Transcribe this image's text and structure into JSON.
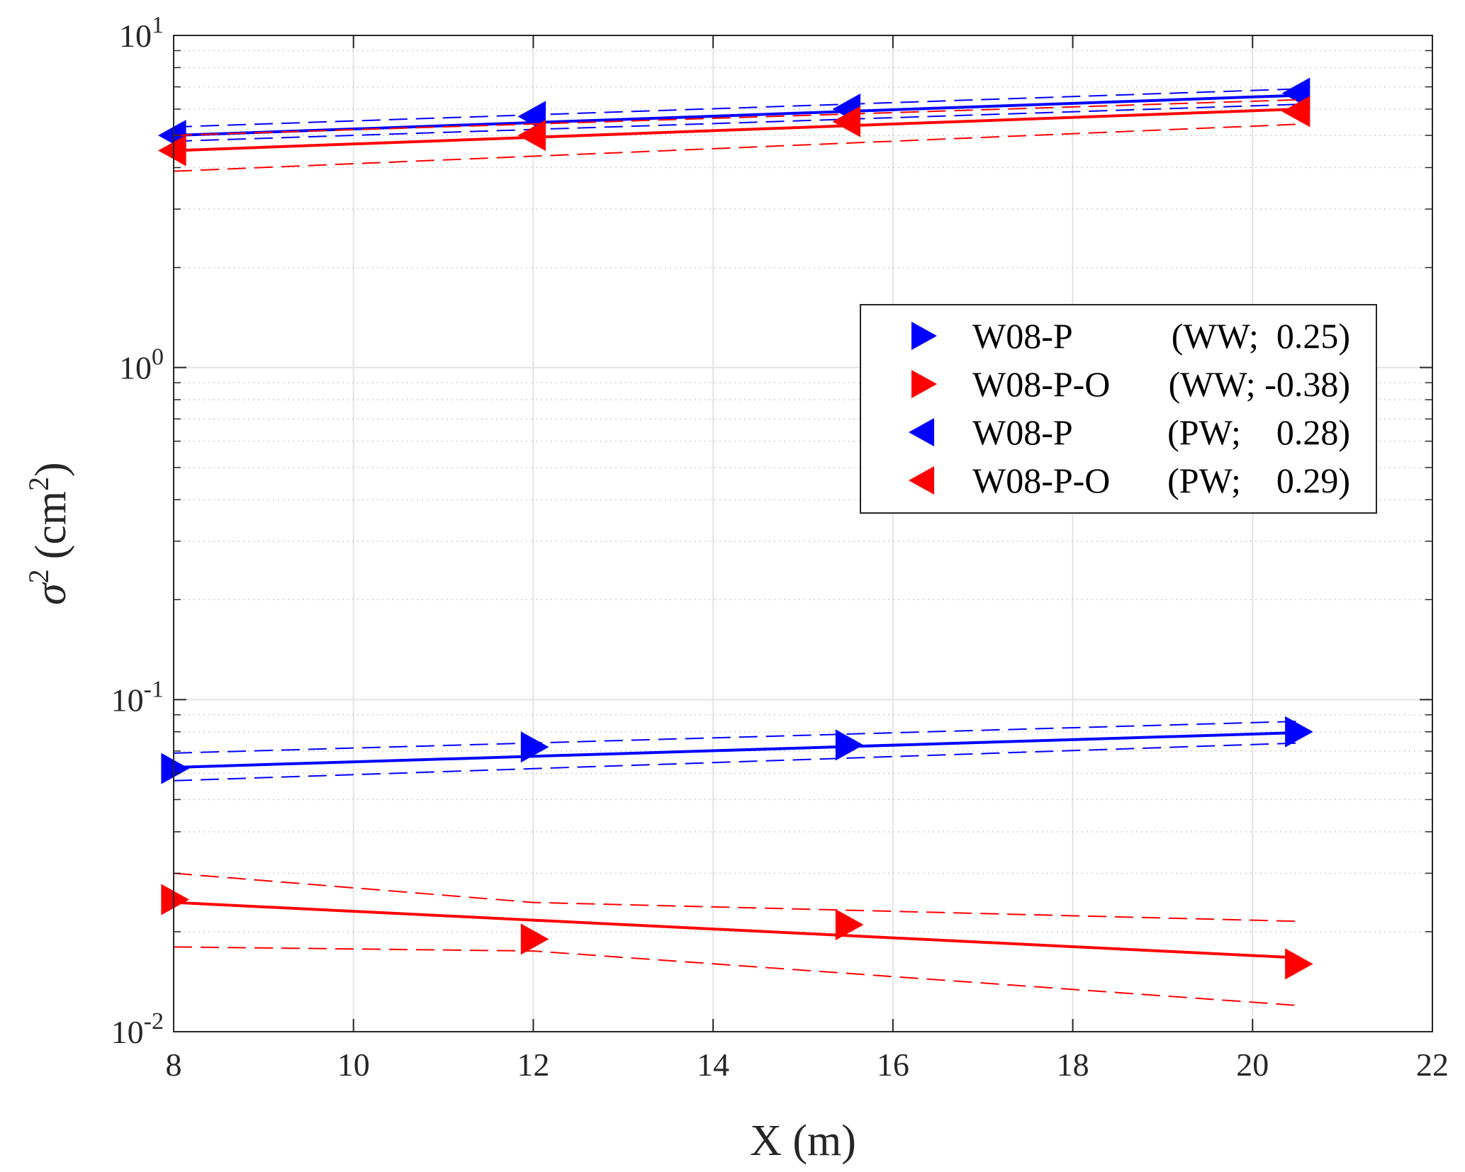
{
  "chart_data": {
    "type": "scatter",
    "xlabel": "X (m)",
    "ylabel_symbol": "σ",
    "ylabel_exponent": "2",
    "ylabel_unit_open": "(cm",
    "ylabel_unit_exp": "2",
    "ylabel_unit_close": ")",
    "xlim": [
      8,
      22
    ],
    "ylim": [
      0.01,
      10
    ],
    "yscale": "log",
    "grid": true,
    "legend_position": "center-right",
    "x_ticks": [
      "8",
      "10",
      "12",
      "14",
      "16",
      "18",
      "20",
      "22"
    ],
    "x_tick_values": [
      8,
      10,
      12,
      14,
      16,
      18,
      20,
      22
    ],
    "y_ticks": [
      {
        "value": 10,
        "base": "10",
        "exp": "1"
      },
      {
        "value": 1,
        "base": "10",
        "exp": "0"
      },
      {
        "value": 0.1,
        "base": "10",
        "exp": "-1"
      },
      {
        "value": 0.01,
        "base": "10",
        "exp": "-2"
      }
    ],
    "series": [
      {
        "name": "W08-P     (WW;  0.25)",
        "legend_label": "W08-P",
        "legend_info": "(WW;  0.25)",
        "marker": "triangle-right",
        "color": "#0000ff",
        "x": [
          8,
          12,
          15.5,
          20.5
        ],
        "y": [
          0.062,
          0.072,
          0.073,
          0.08
        ],
        "fit": {
          "x": [
            8,
            20.5
          ],
          "y": [
            0.0625,
            0.0795
          ]
        },
        "ci_upper": {
          "x": [
            8,
            20.5
          ],
          "y": [
            0.069,
            0.086
          ]
        },
        "ci_lower": {
          "x": [
            8,
            20.5
          ],
          "y": [
            0.057,
            0.074
          ]
        }
      },
      {
        "name": "W08-P-O (WW; -0.38)",
        "legend_label": "W08-P-O",
        "legend_info": "(WW; -0.38)",
        "marker": "triangle-right",
        "color": "#ff0000",
        "x": [
          8,
          12,
          15.5,
          20.5
        ],
        "y": [
          0.025,
          0.019,
          0.021,
          0.016
        ],
        "fit": {
          "x": [
            8,
            20.5
          ],
          "y": [
            0.0245,
            0.0167
          ]
        },
        "ci_upper": {
          "x": [
            8,
            12,
            20.5
          ],
          "y": [
            0.03,
            0.0245,
            0.0215
          ]
        },
        "ci_lower": {
          "x": [
            8,
            12,
            20.5
          ],
          "y": [
            0.018,
            0.0175,
            0.012
          ]
        }
      },
      {
        "name": "W08-P     (PW;    0.28)",
        "legend_label": "W08-P",
        "legend_info": "(PW;    0.28)",
        "marker": "triangle-left",
        "color": "#0000ff",
        "x": [
          8,
          12,
          15.5,
          20.5
        ],
        "y": [
          5.0,
          5.7,
          6.0,
          6.7
        ],
        "fit": {
          "x": [
            8,
            20.5
          ],
          "y": [
            5.0,
            6.6
          ]
        },
        "ci_upper": {
          "x": [
            8,
            20.5
          ],
          "y": [
            5.3,
            6.9
          ]
        },
        "ci_lower": {
          "x": [
            8,
            20.5
          ],
          "y": [
            4.8,
            6.2
          ]
        }
      },
      {
        "name": "W08-P-O (PW;    0.29)",
        "legend_label": "W08-P-O",
        "legend_info": "(PW;    0.29)",
        "marker": "triangle-left",
        "color": "#ff0000",
        "x": [
          8,
          12,
          15.5,
          20.5
        ],
        "y": [
          4.5,
          5.0,
          5.5,
          5.9
        ],
        "fit": {
          "x": [
            8,
            20.5
          ],
          "y": [
            4.5,
            6.0
          ]
        },
        "ci_upper": {
          "x": [
            8,
            20.5
          ],
          "y": [
            5.0,
            6.4
          ]
        },
        "ci_lower": {
          "x": [
            8,
            20.5
          ],
          "y": [
            3.9,
            5.4
          ]
        }
      }
    ]
  }
}
